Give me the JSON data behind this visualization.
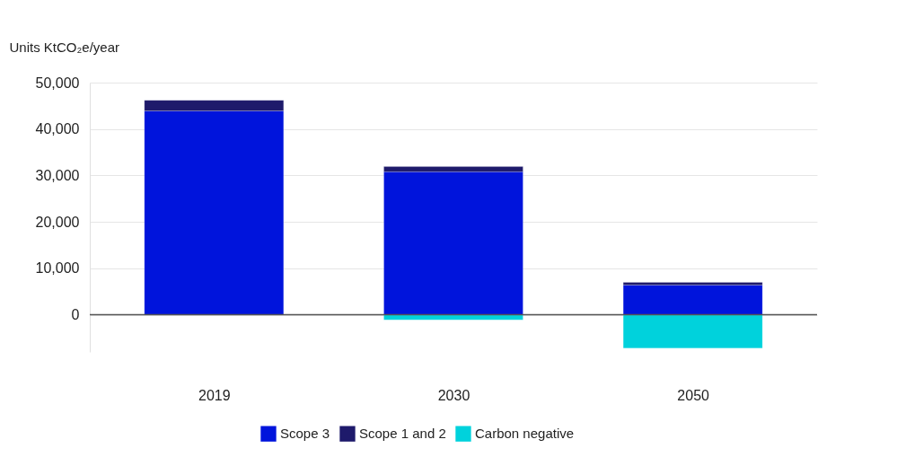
{
  "chart_data": {
    "type": "bar",
    "stacked": true,
    "ylabel": "Units KtCO₂e/year",
    "categories": [
      "2019",
      "2030",
      "2050"
    ],
    "series": [
      {
        "name": "Scope 3",
        "color": "#0014dc",
        "values": [
          43900,
          30800,
          6400
        ]
      },
      {
        "name": "Scope 1 and 2",
        "color": "#1e1a6b",
        "values": [
          2300,
          1100,
          600
        ]
      },
      {
        "name": "Carbon negative",
        "color": "#00d2dc",
        "values": [
          null,
          -1100,
          -7200
        ]
      }
    ],
    "ylim": [
      -8000,
      50000
    ],
    "yticks": [
      {
        "value": 0,
        "label": "0"
      },
      {
        "value": 10000,
        "label": "10,000"
      },
      {
        "value": 20000,
        "label": "20,000"
      },
      {
        "value": 30000,
        "label": "30,000"
      },
      {
        "value": 40000,
        "label": "40,000"
      },
      {
        "value": 50000,
        "label": "50,000"
      }
    ],
    "ref_lines": [
      {
        "axis": "y",
        "value": 0,
        "color": "#555555"
      }
    ],
    "grid": "y",
    "legend": "bottom"
  }
}
